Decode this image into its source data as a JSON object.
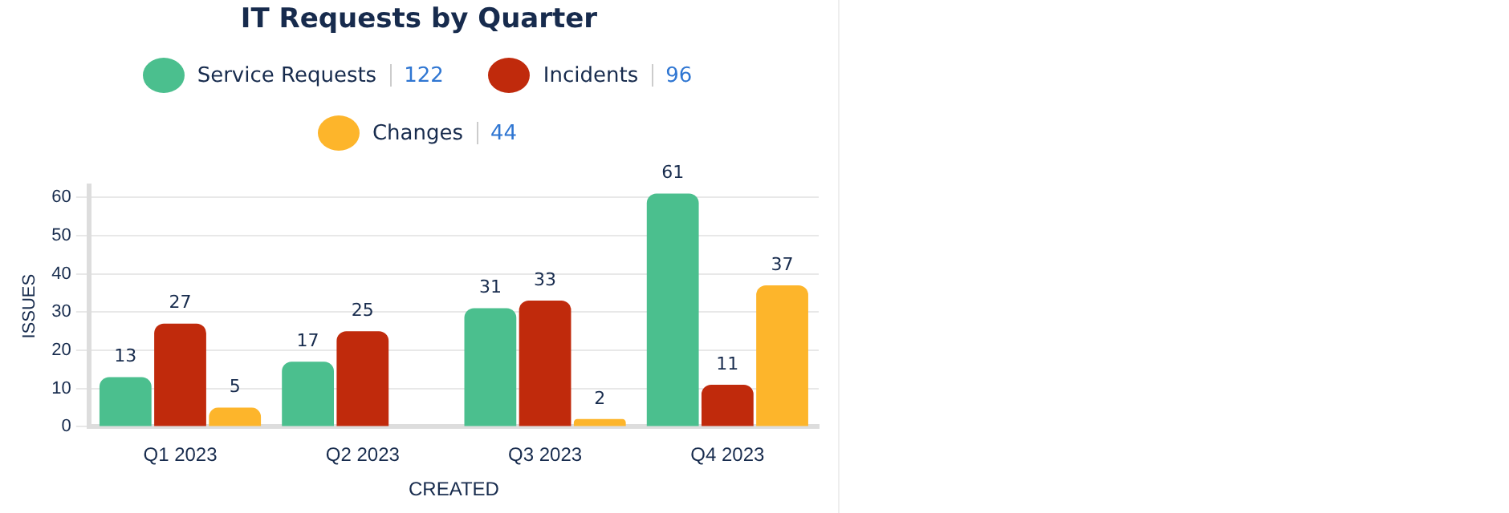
{
  "chart_data": {
    "type": "bar",
    "title": "IT Requests by Quarter",
    "xlabel": "CREATED",
    "ylabel": "ISSUES",
    "categories": [
      "Q1 2023",
      "Q2 2023",
      "Q3 2023",
      "Q4 2023"
    ],
    "series": [
      {
        "name": "Service Requests",
        "color": "#4bbf8e",
        "values": [
          13,
          17,
          31,
          61
        ]
      },
      {
        "name": "Incidents",
        "color": "#c02a0c",
        "values": [
          27,
          25,
          33,
          11
        ]
      },
      {
        "name": "Changes",
        "color": "#fdb52b",
        "values": [
          5,
          null,
          2,
          37
        ]
      }
    ],
    "annotations": [
      "122",
      "96",
      "44"
    ],
    "ylim": [
      0,
      63
    ],
    "yticks": [
      0,
      10,
      20,
      30,
      40,
      50,
      60
    ],
    "grid": "y",
    "legend": "top",
    "data_labels": true
  }
}
